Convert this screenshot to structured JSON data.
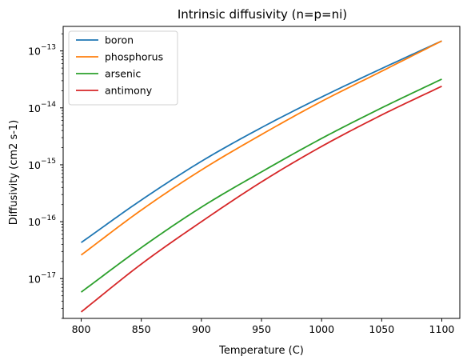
{
  "chart_data": {
    "type": "line",
    "title": "Intrinsic diffusivity (n=p=ni)",
    "xlabel": "Temperature (C)",
    "ylabel": "Diffusivity (cm2 s-1)",
    "xlim": [
      785,
      1115
    ],
    "ylim": [
      2e-18,
      2.7e-13
    ],
    "yscale": "log",
    "xticks": [
      800,
      850,
      900,
      950,
      1000,
      1050,
      1100
    ],
    "xtick_labels": [
      "800",
      "850",
      "900",
      "950",
      "1000",
      "1050",
      "1100"
    ],
    "yticks": [
      1e-17,
      1e-16,
      1e-15,
      1e-14,
      1e-13
    ],
    "ytick_mantissa": [
      "10",
      "10",
      "10",
      "10",
      "10"
    ],
    "ytick_exponents": [
      "−17",
      "−16",
      "−15",
      "−14",
      "−13"
    ],
    "grid": false,
    "legend_position": "upper-left",
    "x": [
      800,
      850,
      900,
      950,
      1000,
      1050,
      1100
    ],
    "series": [
      {
        "name": "boron",
        "color": "#1f77b4",
        "values": [
          4.3e-17,
          2.4e-16,
          1.15e-15,
          4.5e-15,
          1.55e-14,
          4.9e-14,
          1.5e-13
        ]
      },
      {
        "name": "phosphorus",
        "color": "#ff7f0e",
        "values": [
          2.6e-17,
          1.6e-16,
          8.1e-16,
          3.4e-15,
          1.3e-14,
          4.4e-14,
          1.5e-13
        ]
      },
      {
        "name": "arsenic",
        "color": "#2ca02c",
        "values": [
          5.8e-18,
          3.5e-17,
          1.8e-16,
          7.5e-16,
          2.9e-15,
          1e-14,
          3.2e-14
        ]
      },
      {
        "name": "antimony",
        "color": "#d62728",
        "values": [
          2.6e-18,
          1.8e-17,
          1e-16,
          5e-16,
          2.1e-15,
          7.5e-15,
          2.4e-14
        ]
      }
    ]
  }
}
